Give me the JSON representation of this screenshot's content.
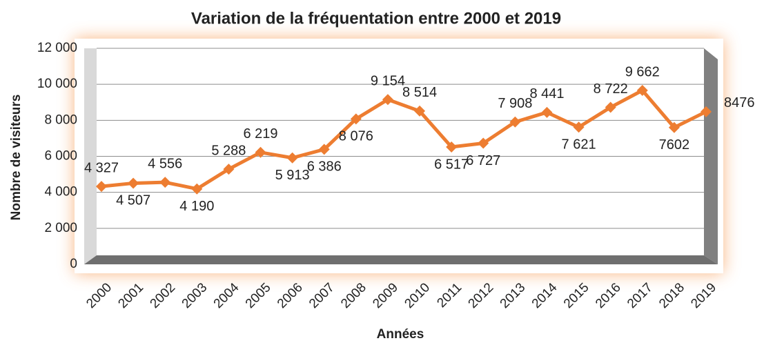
{
  "chart_data": {
    "type": "line",
    "title": "Variation de la fréquentation entre 2000 et 2019",
    "x_label": "Années",
    "y_label": "Nombre de visiteurs",
    "categories": [
      "2000",
      "2001",
      "2002",
      "2003",
      "2004",
      "2005",
      "2006",
      "2007",
      "2008",
      "2009",
      "2010",
      "2011",
      "2012",
      "2013",
      "2014",
      "2015",
      "2016",
      "2017",
      "2018",
      "2019"
    ],
    "series": [
      {
        "name": "Nombre de visiteurs",
        "color": "#ED7D31",
        "values": [
          4327,
          4507,
          4556,
          4190,
          5288,
          6219,
          5913,
          6386,
          8076,
          9154,
          8514,
          6517,
          6727,
          7908,
          8441,
          7621,
          8722,
          9662,
          7602,
          8476
        ],
        "value_labels": [
          "4 327",
          "4 507",
          "4 556",
          "4 190",
          "5 288",
          "6 219",
          "5 913",
          "6 386",
          "8 076",
          "9 154",
          "8 514",
          "6 517",
          "6 727",
          "7 908",
          "8 441",
          "7 621",
          "8 722",
          "9 662",
          "7602",
          "8476"
        ]
      }
    ],
    "ylim": [
      0,
      12000
    ],
    "yticks": [
      0,
      {
        "value": 2000,
        "label": "2 000"
      },
      {
        "value": 4000,
        "label": "4 000"
      },
      {
        "value": 6000,
        "label": "6 000"
      },
      {
        "value": 8000,
        "label": "8 000"
      },
      {
        "value": 10000,
        "label": "10 000"
      },
      {
        "value": 12000,
        "label": "12 000"
      }
    ],
    "grid": true
  }
}
